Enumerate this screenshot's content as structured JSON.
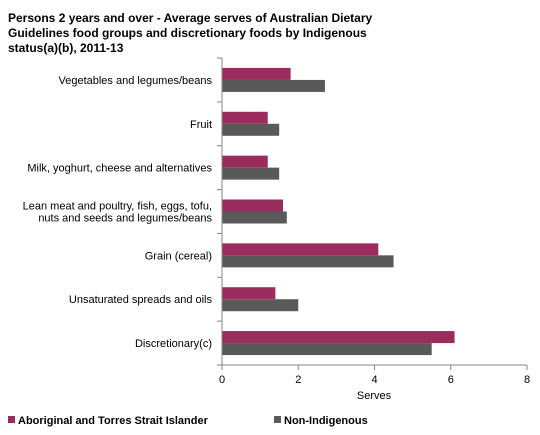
{
  "chart_data": {
    "type": "bar",
    "orientation": "horizontal",
    "title_lines": [
      "Persons 2 years and over - Average serves of Australian Dietary",
      "Guidelines food groups and discretionary foods by Indigenous",
      "status(a)(b),  2011-13"
    ],
    "categories": [
      [
        "Vegetables and legumes/beans"
      ],
      [
        "Fruit"
      ],
      [
        "Milk, yoghurt, cheese and alternatives"
      ],
      [
        "Lean meat and poultry, fish, eggs, tofu,",
        "nuts and seeds and legumes/beans"
      ],
      [
        "Grain (cereal)"
      ],
      [
        "Unsaturated spreads and oils"
      ],
      [
        "Discretionary(c)"
      ]
    ],
    "series": [
      {
        "name": "Aboriginal and Torres Strait Islander",
        "color": "#9b2d5e",
        "values": [
          1.8,
          1.2,
          1.2,
          1.6,
          4.1,
          1.4,
          6.1
        ]
      },
      {
        "name": "Non-Indigenous",
        "color": "#595959",
        "values": [
          2.7,
          1.5,
          1.5,
          1.7,
          4.5,
          2.0,
          5.5
        ]
      }
    ],
    "xlabel": "Serves",
    "xlim": [
      0,
      8
    ],
    "xticks": [
      "0",
      "2",
      "4",
      "6",
      "8"
    ],
    "grid": false,
    "legend_position": "bottom"
  }
}
